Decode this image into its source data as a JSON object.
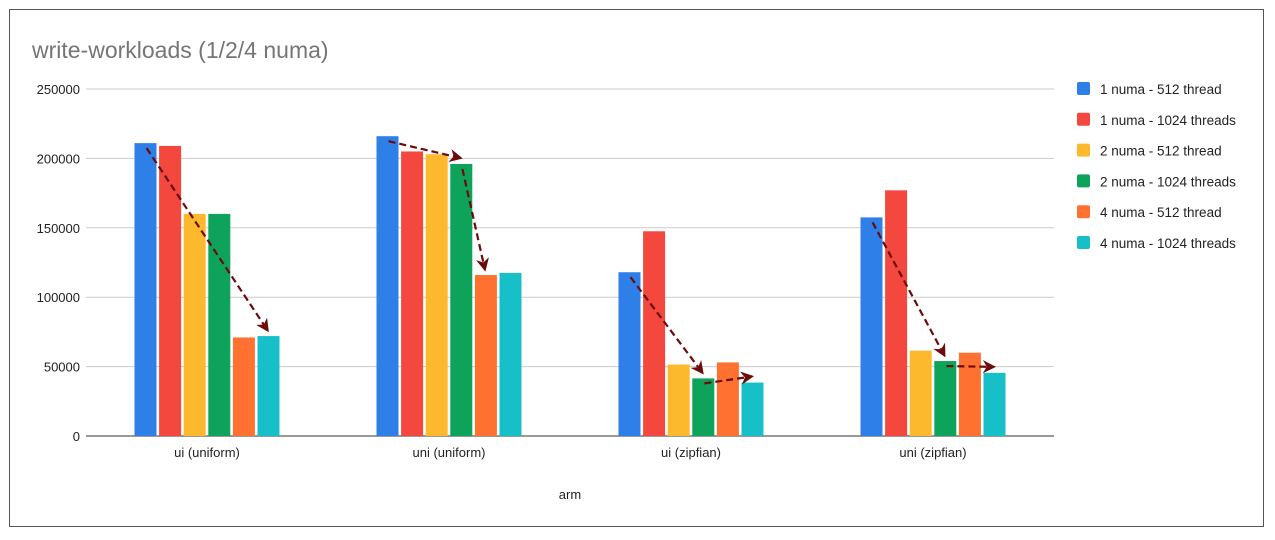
{
  "chart_data": {
    "type": "bar",
    "title": "write-workloads (1/2/4 numa)",
    "xlabel": "arm",
    "ylabel": "",
    "ylim": [
      0,
      250000
    ],
    "yticks": [
      0,
      50000,
      100000,
      150000,
      200000,
      250000
    ],
    "ytick_labels": [
      "0",
      "50000",
      "100000",
      "150000",
      "200000",
      "250000"
    ],
    "grid": true,
    "legend_position": "right",
    "categories": [
      "ui (uniform)",
      "uni (uniform)",
      "ui (zipfian)",
      "uni (zipfian)"
    ],
    "series": [
      {
        "name": "1 numa - 512 thread",
        "color": "#2E7FE8",
        "values": [
          211000,
          216000,
          118000,
          157500
        ]
      },
      {
        "name": "1 numa - 1024 threads",
        "color": "#F4473D",
        "values": [
          209000,
          205000,
          147500,
          177000
        ]
      },
      {
        "name": "2 numa - 512 thread",
        "color": "#FDB92E",
        "values": [
          160000,
          203000,
          51500,
          61500
        ]
      },
      {
        "name": "2 numa - 1024 threads",
        "color": "#0EA35A",
        "values": [
          160000,
          196000,
          41500,
          54000
        ]
      },
      {
        "name": "4 numa - 512 thread",
        "color": "#FF7131",
        "values": [
          71000,
          116000,
          53000,
          60000
        ]
      },
      {
        "name": "4 numa - 1024 threads",
        "color": "#17C0C8",
        "values": [
          72000,
          117500,
          38500,
          45500
        ]
      }
    ],
    "annotations": {
      "type": "dashed-arrows",
      "color": "#6B0B0B",
      "arrows": [
        {
          "category": 0,
          "from_series": 0,
          "to_series": 5
        },
        {
          "category": 1,
          "from_series": 0,
          "to_series": 3
        },
        {
          "category": 1,
          "from_series": 3,
          "to_series": 4
        },
        {
          "category": 2,
          "from_series": 0,
          "to_series": 3
        },
        {
          "category": 2,
          "from_series": 3,
          "to_series": 5
        },
        {
          "category": 3,
          "from_series": 0,
          "to_series": 3
        },
        {
          "category": 3,
          "from_series": 3,
          "to_series": 5
        }
      ]
    }
  }
}
